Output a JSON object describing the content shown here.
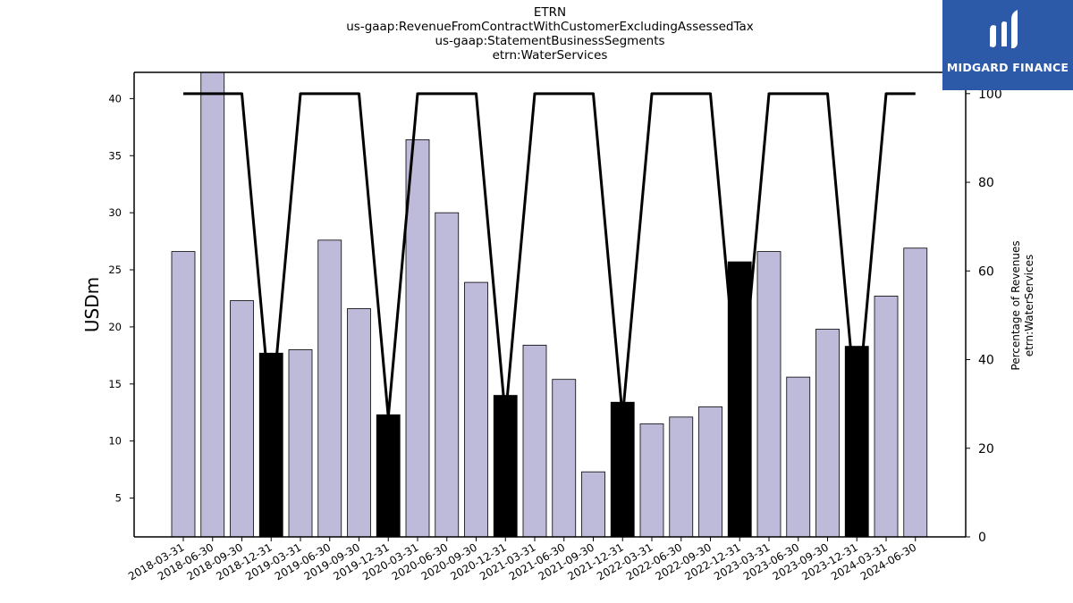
{
  "header": {
    "titles": [
      "ETRN",
      "us-gaap:RevenueFromContractWithCustomerExcludingAssessedTax",
      "us-gaap:StatementBusinessSegments",
      "etrn:WaterServices"
    ]
  },
  "logo": {
    "text": "MIDGARD FINANCE"
  },
  "chart_data": {
    "type": "bar",
    "title": "",
    "ylabel": "USDm",
    "y2label": [
      "Percentage of Revenues",
      "etrn:WaterServices"
    ],
    "categories": [
      "2018-03-31",
      "2018-06-30",
      "2018-09-30",
      "2018-12-31",
      "2019-03-31",
      "2019-06-30",
      "2019-09-30",
      "2019-12-31",
      "2020-03-31",
      "2020-06-30",
      "2020-09-30",
      "2020-12-31",
      "2021-03-31",
      "2021-06-30",
      "2021-09-30",
      "2021-12-31",
      "2022-03-31",
      "2022-06-30",
      "2022-09-30",
      "2022-12-31",
      "2023-03-31",
      "2023-06-30",
      "2023-09-30",
      "2023-12-31",
      "2024-03-31",
      "2024-06-30"
    ],
    "series": [
      {
        "type": "bar",
        "values": [
          26.6,
          42.5,
          22.3,
          17.7,
          18.0,
          27.6,
          21.6,
          12.3,
          36.4,
          30.0,
          23.9,
          14.0,
          18.4,
          15.4,
          7.3,
          13.4,
          11.5,
          12.1,
          13.0,
          25.7,
          26.6,
          15.6,
          19.8,
          18.3,
          22.7,
          26.9
        ],
        "colors": [
          "#bebad9",
          "#bebad9",
          "#bebad9",
          "#000000",
          "#bebad9",
          "#bebad9",
          "#bebad9",
          "#000000",
          "#bebad9",
          "#bebad9",
          "#bebad9",
          "#000000",
          "#bebad9",
          "#bebad9",
          "#bebad9",
          "#000000",
          "#bebad9",
          "#bebad9",
          "#bebad9",
          "#000000",
          "#bebad9",
          "#bebad9",
          "#bebad9",
          "#000000",
          "#bebad9",
          "#bebad9"
        ]
      },
      {
        "type": "line",
        "axis": "right",
        "color": "#000000",
        "values": [
          100,
          100,
          100,
          27,
          100,
          100,
          100,
          27,
          100,
          100,
          100,
          27,
          100,
          100,
          100,
          27,
          100,
          100,
          100,
          27,
          100,
          100,
          100,
          27,
          100,
          100
        ]
      }
    ],
    "ylim": [
      1.6,
      42.3
    ],
    "yticks": [
      5,
      10,
      15,
      20,
      25,
      30,
      35,
      40
    ],
    "y2lim": [
      0,
      104.8
    ],
    "y2ticks": [
      0,
      20,
      40,
      60,
      80,
      100
    ],
    "grid": false,
    "legend": "none"
  }
}
